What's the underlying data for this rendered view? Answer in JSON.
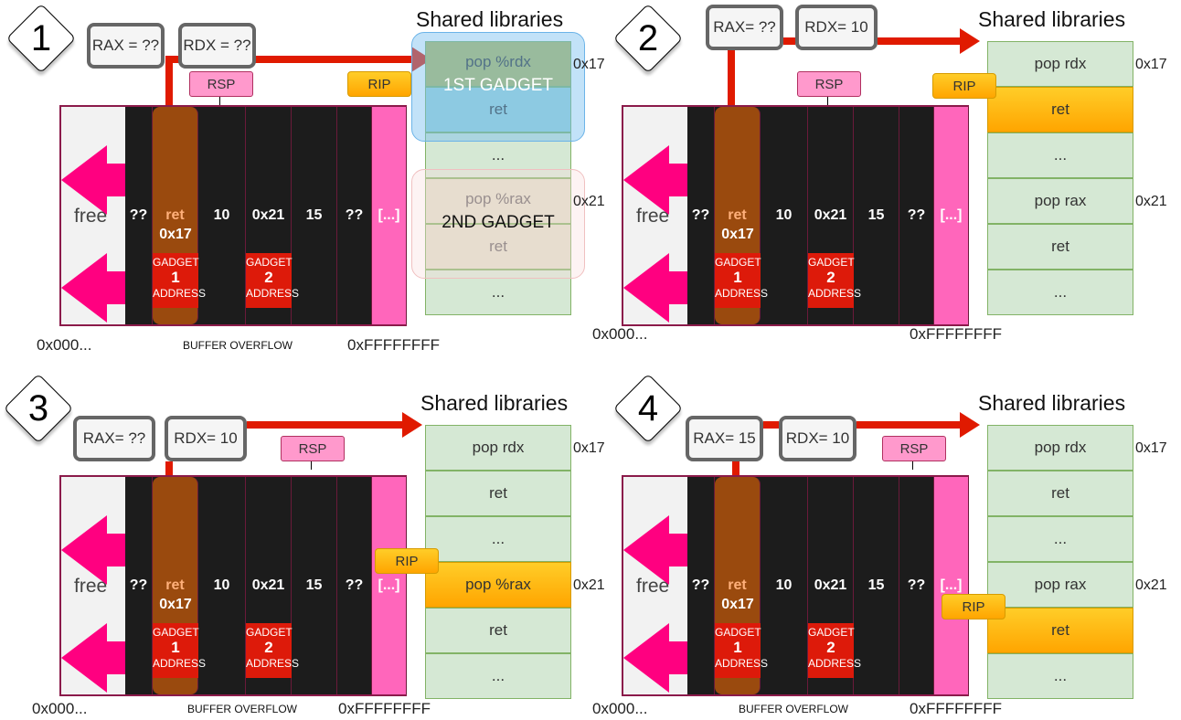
{
  "colors": {
    "register_border": "#666666",
    "rsp": "#ff99cc",
    "rip": "#ffa500",
    "stack": "#1c1c1c",
    "ret_column": "#9a4a0e",
    "gadget": "#dd1a0a",
    "pink_arrow": "#ff0080",
    "library": "#d5e8d4",
    "arrow": "#e01a00"
  },
  "panels": [
    {
      "number": "1",
      "rax": "RAX = ??",
      "rdx": "RDX = ??",
      "rsp": "RSP",
      "rip": "RIP",
      "title": "Shared libraries",
      "free": "free",
      "cells": [
        "??",
        "ret",
        "10",
        "0x21",
        "15",
        "??",
        "[...]"
      ],
      "ret_addr": "0x17",
      "gadgets": [
        {
          "top": "GADGET",
          "num": "1",
          "bottom": "ADDRESS"
        },
        {
          "top": "GADGET",
          "num": "2",
          "bottom": "ADDRESS"
        }
      ],
      "library": [
        "pop %rdx",
        "ret",
        "...",
        "pop %rax",
        "ret",
        "..."
      ],
      "offsets": [
        "0x17",
        "0x21"
      ],
      "gadget_labels": [
        "1ST GADGET",
        "2ND GADGET"
      ],
      "low": "0x000...",
      "mid": "BUFFER OVERFLOW",
      "high": "0xFFFFFFFF"
    },
    {
      "number": "2",
      "rax": "RAX= ??",
      "rdx": "RDX= 10",
      "rsp": "RSP",
      "rip": "RIP",
      "title": "Shared libraries",
      "free": "free",
      "cells": [
        "??",
        "ret",
        "10",
        "0x21",
        "15",
        "??",
        "[...]"
      ],
      "ret_addr": "0x17",
      "gadgets": [
        {
          "top": "GADGET",
          "num": "1",
          "bottom": "ADDRESS"
        },
        {
          "top": "GADGET",
          "num": "2",
          "bottom": "ADDRESS"
        }
      ],
      "library": [
        "pop rdx",
        "ret",
        "...",
        "pop rax",
        "ret",
        "..."
      ],
      "offsets": [
        "0x17",
        "0x21"
      ],
      "highlight_row": 1,
      "low": "0x000...",
      "high": "0xFFFFFFFF"
    },
    {
      "number": "3",
      "rax": "RAX= ??",
      "rdx": "RDX= 10",
      "rsp": "RSP",
      "rip": "RIP",
      "title": "Shared libraries",
      "free": "free",
      "cells": [
        "??",
        "ret",
        "10",
        "0x21",
        "15",
        "??",
        "[...]"
      ],
      "ret_addr": "0x17",
      "gadgets": [
        {
          "top": "GADGET",
          "num": "1",
          "bottom": "ADDRESS"
        },
        {
          "top": "GADGET",
          "num": "2",
          "bottom": "ADDRESS"
        }
      ],
      "library": [
        "pop rdx",
        "ret",
        "...",
        "pop %rax",
        "ret",
        "..."
      ],
      "offsets": [
        "0x17",
        "0x21"
      ],
      "highlight_row": 3,
      "low": "0x000...",
      "mid": "BUFFER OVERFLOW",
      "high": "0xFFFFFFFF"
    },
    {
      "number": "4",
      "rax": "RAX= 15",
      "rdx": "RDX= 10",
      "rsp": "RSP",
      "rip": "RIP",
      "title": "Shared libraries",
      "free": "free",
      "cells": [
        "??",
        "ret",
        "10",
        "0x21",
        "15",
        "??",
        "[...]"
      ],
      "ret_addr": "0x17",
      "gadgets": [
        {
          "top": "GADGET",
          "num": "1",
          "bottom": "ADDRESS"
        },
        {
          "top": "GADGET",
          "num": "2",
          "bottom": "ADDRESS"
        }
      ],
      "library": [
        "pop rdx",
        "ret",
        "...",
        "pop rax",
        "ret",
        "..."
      ],
      "offsets": [
        "0x17",
        "0x21"
      ],
      "highlight_row": 4,
      "low": "0x000...",
      "mid": "BUFFER OVERFLOW",
      "high": "0xFFFFFFFF"
    }
  ]
}
